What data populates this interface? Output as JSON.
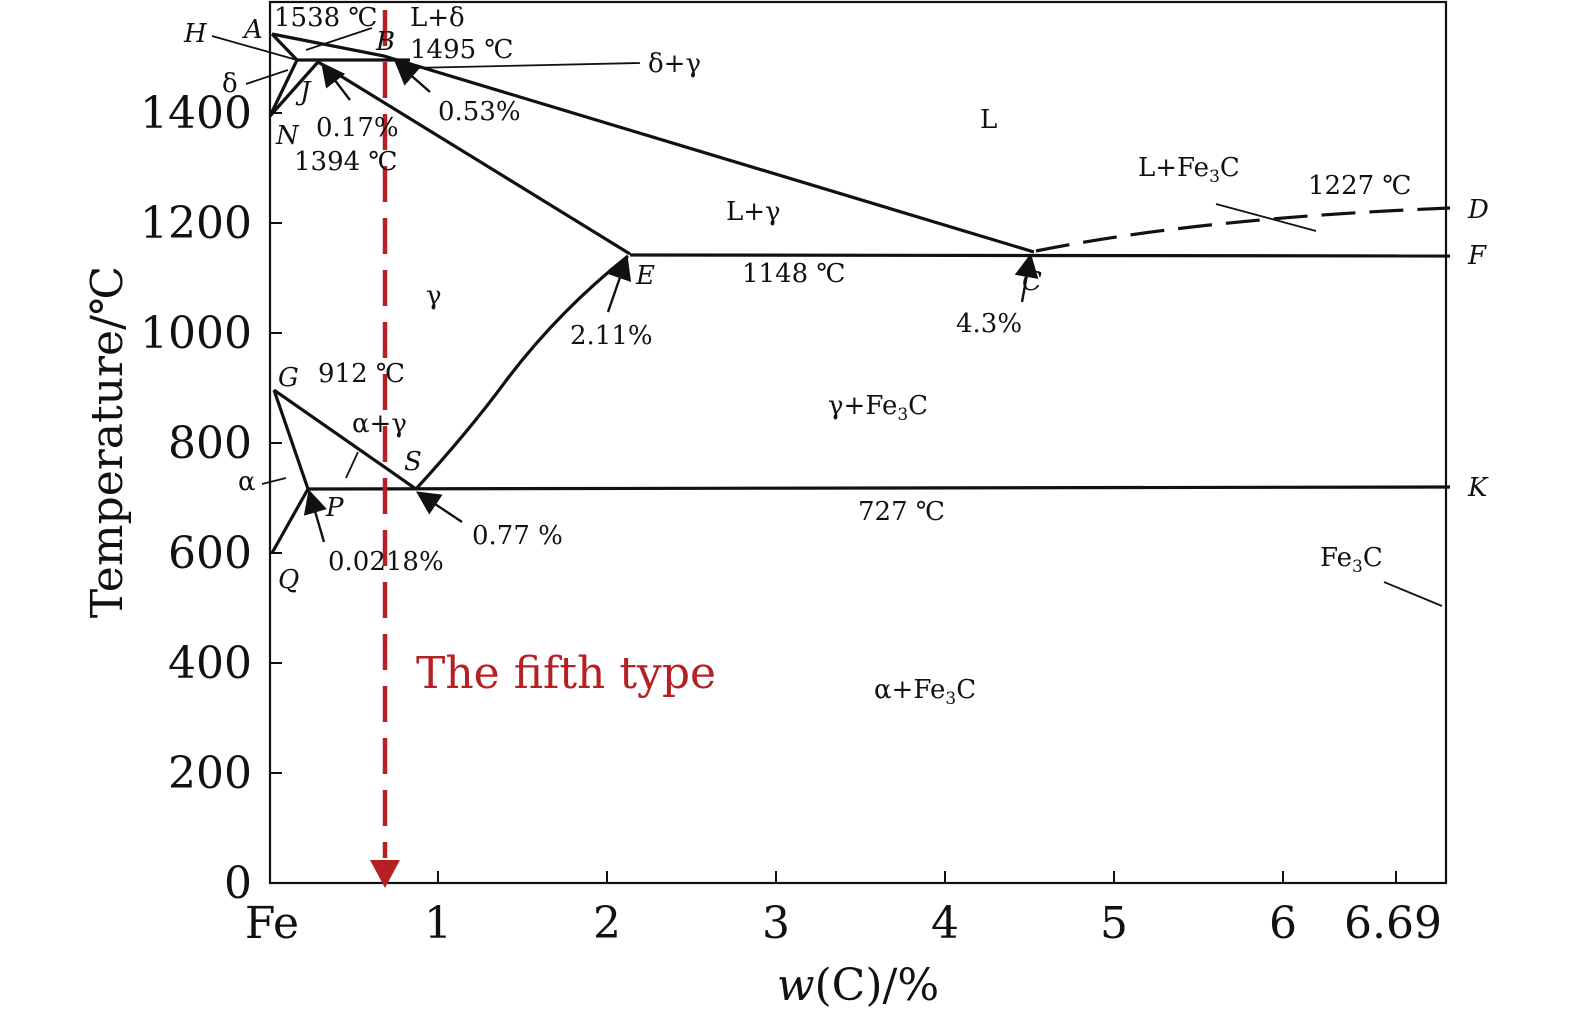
{
  "axes": {
    "x_title_italic": "w",
    "x_title_rest": "(C)/%",
    "y_title": "Temperature/℃",
    "x_ticks": [
      "Fe",
      "1",
      "2",
      "3",
      "4",
      "5",
      "6",
      "6.69"
    ],
    "y_ticks": [
      "0",
      "200",
      "400",
      "600",
      "800",
      "1000",
      "1200",
      "1400"
    ]
  },
  "points": {
    "A": "A",
    "B": "B",
    "H": "H",
    "J": "J",
    "N": "N",
    "E": "E",
    "C": "C",
    "D": "D",
    "F": "F",
    "G": "G",
    "S": "S",
    "P": "P",
    "Q": "Q",
    "K": "K"
  },
  "temperatures": {
    "t1538": "1538 ℃",
    "t1495": "1495 ℃",
    "t1394": "1394 ℃",
    "t1227": "1227 ℃",
    "t1148": "1148 ℃",
    "t912": "912 ℃",
    "t727": "727 ℃"
  },
  "compositions": {
    "c053": "0.53%",
    "c017": "0.17%",
    "c211": "2.11%",
    "c43": "4.3%",
    "c077": "0.77 %",
    "c00218": "0.0218%"
  },
  "phases": {
    "L_delta": "L+δ",
    "delta_gamma": "δ+γ",
    "delta": "δ",
    "L": "L",
    "L_Fe3C_pre": "L+Fe",
    "L_Fe3C_sub": "3",
    "L_Fe3C_post": "C",
    "L_gamma": "L+γ",
    "gamma": "γ",
    "gamma_Fe3C_pre": "γ+Fe",
    "gamma_Fe3C_sub": "3",
    "gamma_Fe3C_post": "C",
    "alpha_gamma": "α+γ",
    "alpha": "α",
    "Fe3C_pre": "Fe",
    "Fe3C_sub": "3",
    "Fe3C_post": "C",
    "alpha_Fe3C_pre": "α+Fe",
    "alpha_Fe3C_sub": "3",
    "alpha_Fe3C_post": "C"
  },
  "annotation": {
    "red_label": "The fifth type",
    "red_color": "#b52025"
  }
}
